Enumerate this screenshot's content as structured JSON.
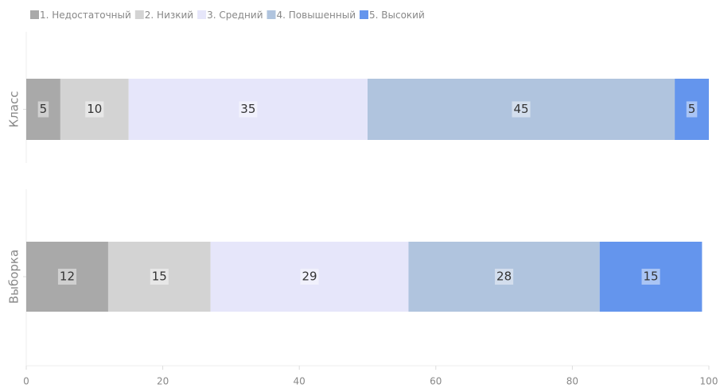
{
  "chart_data": {
    "type": "stacked-bar-horizontal",
    "categories": [
      "Класс",
      "Выборка"
    ],
    "series": [
      {
        "name": "1. Недостаточный",
        "color": "#a9a9a9",
        "values": [
          5,
          12
        ]
      },
      {
        "name": "2. Низкий",
        "color": "#d3d3d3",
        "values": [
          10,
          15
        ]
      },
      {
        "name": "3. Средний",
        "color": "#e6e6fa",
        "values": [
          35,
          29
        ]
      },
      {
        "name": "4. Повышенный",
        "color": "#b0c4de",
        "values": [
          45,
          28
        ]
      },
      {
        "name": "5. Высокий",
        "color": "#6495ed",
        "values": [
          5,
          15
        ]
      }
    ],
    "xlim": [
      0,
      100
    ],
    "xticks": [
      0,
      20,
      40,
      60,
      80,
      100
    ],
    "legend": "top-left"
  }
}
